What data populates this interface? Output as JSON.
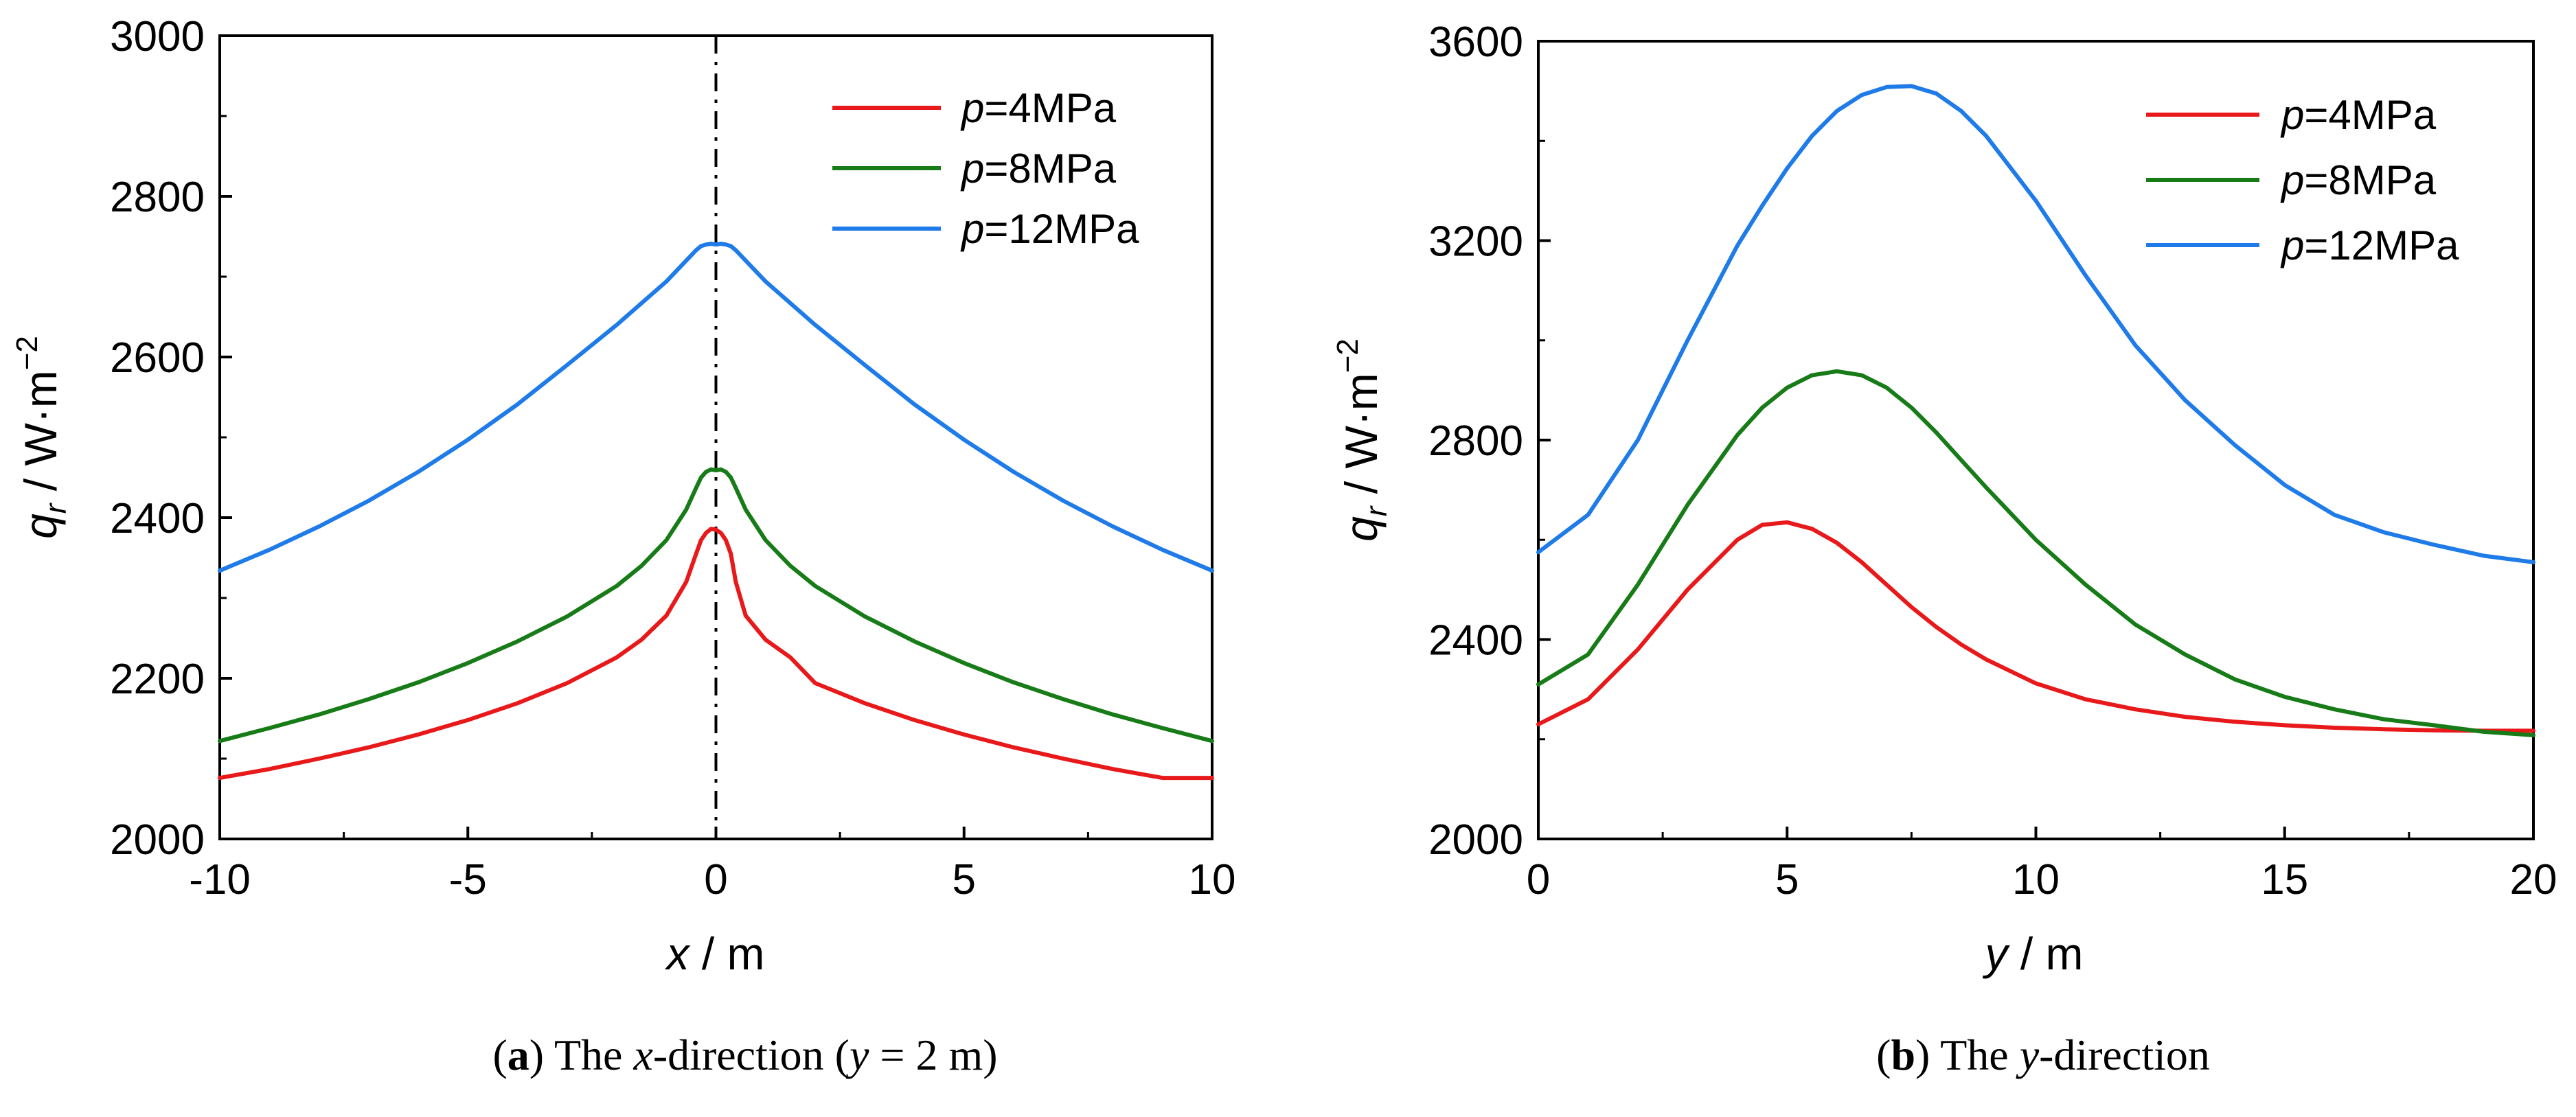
{
  "chart_data": [
    {
      "type": "line",
      "panel": "a",
      "caption": {
        "open": "(",
        "letter": "a",
        "close": ")",
        "t1": " The ",
        "v1": "x",
        "t2": "-direction (",
        "v2": "y",
        "t3": " = 2 m)"
      },
      "xlabel": {
        "var": "x",
        "unit": " / m"
      },
      "ylabel": {
        "var": "q",
        "sub": "r",
        "unit": " / W·m",
        "sup": "−2"
      },
      "xlim": [
        -10,
        10
      ],
      "ylim": [
        2000,
        3000
      ],
      "xticks": [
        -10,
        -5,
        0,
        5,
        10
      ],
      "xtick_labels": [
        "-10",
        "-5",
        "0",
        "5",
        "10"
      ],
      "yticks": [
        2000,
        2200,
        2400,
        2600,
        2800,
        3000
      ],
      "ytick_labels": [
        "2000",
        "2200",
        "2400",
        "2600",
        "2800",
        "3000"
      ],
      "reference_line_x": 0,
      "legend_position": "top-right",
      "x": [
        -10,
        -9,
        -8,
        -7,
        -6,
        -5,
        -4,
        -3,
        -2,
        -1.5,
        -1,
        -0.6,
        -0.4,
        -0.3,
        -0.2,
        -0.1,
        0,
        0.1,
        0.2,
        0.3,
        0.4,
        0.6,
        1,
        1.5,
        2,
        3,
        4,
        5,
        6,
        7,
        8,
        9,
        10
      ],
      "series": [
        {
          "name": "p=4MPa",
          "pvar": "p",
          "prest": "=4MPa",
          "color": "#e8191a",
          "values": [
            2076,
            2087,
            2100,
            2114,
            2130,
            2148,
            2169,
            2194,
            2226,
            2248,
            2278,
            2320,
            2355,
            2372,
            2381,
            2386,
            2385,
            2381,
            2372,
            2355,
            2320,
            2278,
            2248,
            2226,
            2194,
            2169,
            2148,
            2130,
            2114,
            2100,
            2087,
            2076,
            2076
          ]
        },
        {
          "name": "p=8MPa",
          "pvar": "p",
          "prest": "=8MPa",
          "color": "#177b17",
          "values": [
            2122,
            2138,
            2155,
            2174,
            2195,
            2219,
            2246,
            2277,
            2315,
            2340,
            2372,
            2410,
            2437,
            2450,
            2457,
            2460,
            2459,
            2460,
            2457,
            2450,
            2437,
            2410,
            2372,
            2340,
            2315,
            2277,
            2246,
            2219,
            2195,
            2174,
            2155,
            2138,
            2122
          ]
        },
        {
          "name": "p=12MPa",
          "pvar": "p",
          "prest": "=12MPa",
          "color": "#1e7be8",
          "values": [
            2334,
            2360,
            2389,
            2421,
            2457,
            2497,
            2541,
            2590,
            2640,
            2667,
            2694,
            2720,
            2733,
            2738,
            2740,
            2741,
            2740,
            2741,
            2740,
            2738,
            2733,
            2720,
            2694,
            2667,
            2640,
            2590,
            2541,
            2497,
            2457,
            2421,
            2389,
            2360,
            2334
          ]
        }
      ]
    },
    {
      "type": "line",
      "panel": "b",
      "caption": {
        "open": "(",
        "letter": "b",
        "close": ")",
        "t1": " The ",
        "v1": "y",
        "t2": "-direction"
      },
      "xlabel": {
        "var": "y",
        "unit": " / m"
      },
      "ylabel": {
        "var": "q",
        "sub": "r",
        "unit": " / W·m",
        "sup": "−2"
      },
      "xlim": [
        0,
        20
      ],
      "ylim": [
        2000,
        3600
      ],
      "xticks": [
        0,
        5,
        10,
        15,
        20
      ],
      "xtick_labels": [
        "0",
        "5",
        "10",
        "15",
        "20"
      ],
      "yticks": [
        2000,
        2400,
        2800,
        3200,
        3600
      ],
      "ytick_labels": [
        "2000",
        "2400",
        "2800",
        "3200",
        "3600"
      ],
      "legend_position": "top-right",
      "x": [
        0,
        1,
        2,
        3,
        4,
        4.5,
        5,
        5.5,
        6,
        6.5,
        7,
        7.5,
        8,
        8.5,
        9,
        10,
        11,
        12,
        13,
        14,
        15,
        16,
        17,
        18,
        19,
        20
      ],
      "series": [
        {
          "name": "p=4MPa",
          "pvar": "p",
          "prest": "=4MPa",
          "color": "#e8191a",
          "values": [
            2230,
            2280,
            2380,
            2500,
            2600,
            2630,
            2635,
            2622,
            2594,
            2555,
            2510,
            2465,
            2425,
            2390,
            2360,
            2312,
            2280,
            2260,
            2245,
            2235,
            2228,
            2223,
            2220,
            2218,
            2217,
            2217
          ]
        },
        {
          "name": "p=8MPa",
          "pvar": "p",
          "prest": "=8MPa",
          "color": "#177b17",
          "values": [
            2310,
            2370,
            2510,
            2670,
            2810,
            2865,
            2905,
            2930,
            2938,
            2930,
            2905,
            2865,
            2815,
            2760,
            2705,
            2600,
            2510,
            2430,
            2370,
            2320,
            2285,
            2260,
            2240,
            2228,
            2215,
            2208
          ]
        },
        {
          "name": "p=12MPa",
          "pvar": "p",
          "prest": "=12MPa",
          "color": "#1e7be8",
          "values": [
            2575,
            2650,
            2800,
            3000,
            3190,
            3270,
            3345,
            3410,
            3460,
            3492,
            3508,
            3510,
            3495,
            3460,
            3410,
            3280,
            3130,
            2990,
            2880,
            2790,
            2710,
            2650,
            2615,
            2590,
            2568,
            2555
          ]
        }
      ]
    }
  ]
}
